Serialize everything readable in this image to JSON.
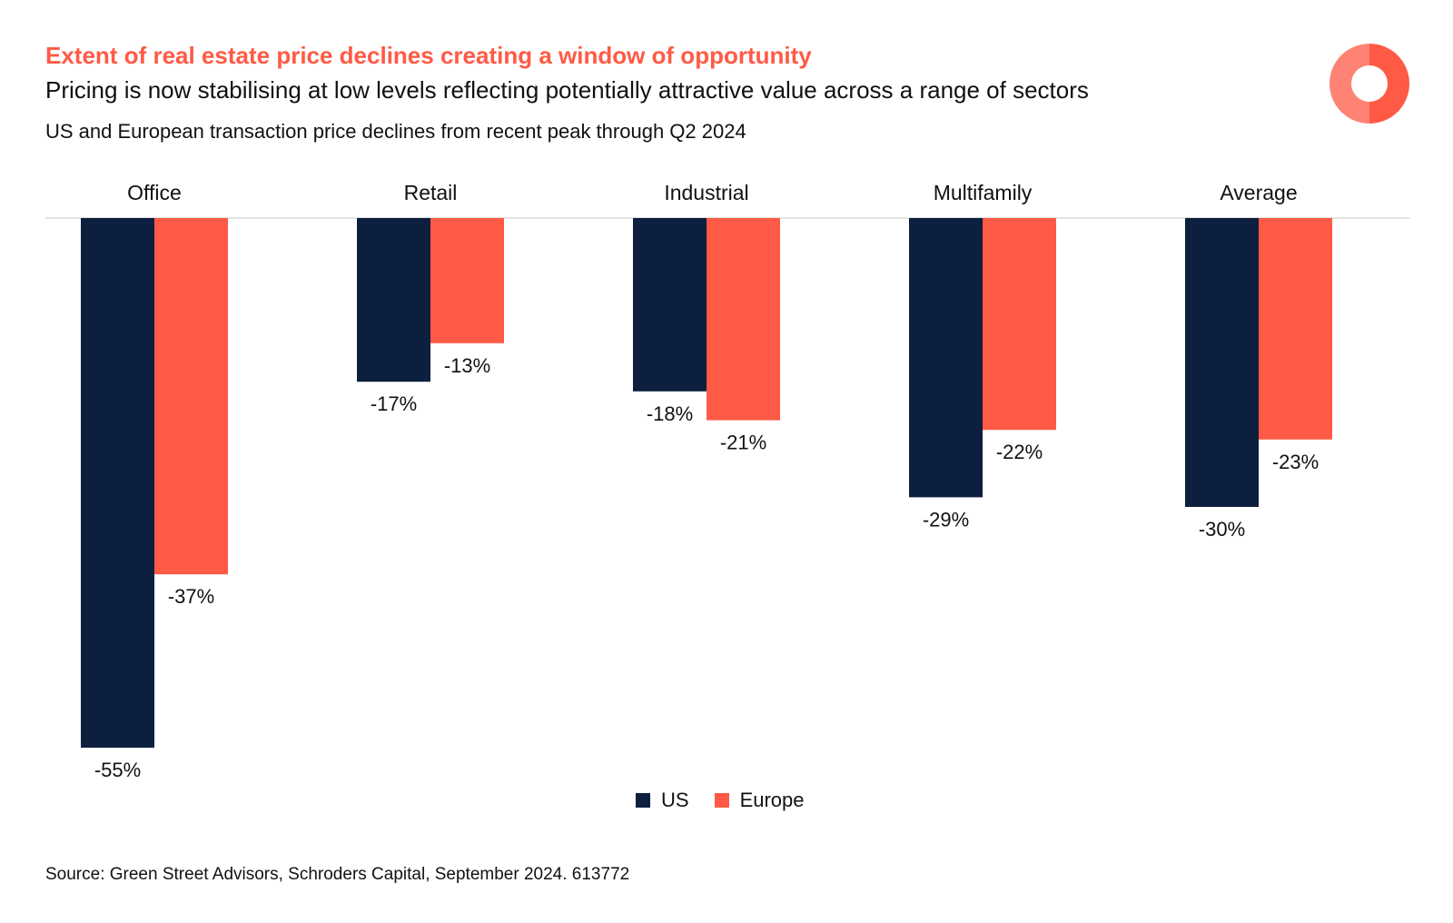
{
  "header": {
    "title": "Extent of real estate price declines creating a window of opportunity",
    "subtitle": "Pricing is now stabilising at low levels reflecting potentially attractive value across a range of sectors",
    "caption": "US and European transaction price declines from recent peak through Q2 2024"
  },
  "footer": {
    "source": "Source: Green Street Advisors, Schroders Capital, September 2024. 613772"
  },
  "colors": {
    "us": "#0d1f3f",
    "europe": "#ff5a45",
    "title": "#ff5a45",
    "logo": "#ff5a45"
  },
  "chart_data": {
    "type": "bar",
    "categories": [
      "Office",
      "Retail",
      "Industrial",
      "Multifamily",
      "Average"
    ],
    "series": [
      {
        "name": "US",
        "values": [
          -55,
          -17,
          -18,
          -29,
          -30
        ],
        "labels": [
          "-55%",
          "-17%",
          "-18%",
          "-29%",
          "-30%"
        ]
      },
      {
        "name": "Europe",
        "values": [
          -37,
          -13,
          -21,
          -22,
          -23
        ],
        "labels": [
          "-37%",
          "-13%",
          "-21%",
          "-22%",
          "-23%"
        ]
      }
    ],
    "ylim": [
      -55,
      0
    ],
    "grid": false,
    "legend_position": "bottom",
    "xlabel": "",
    "ylabel": ""
  }
}
